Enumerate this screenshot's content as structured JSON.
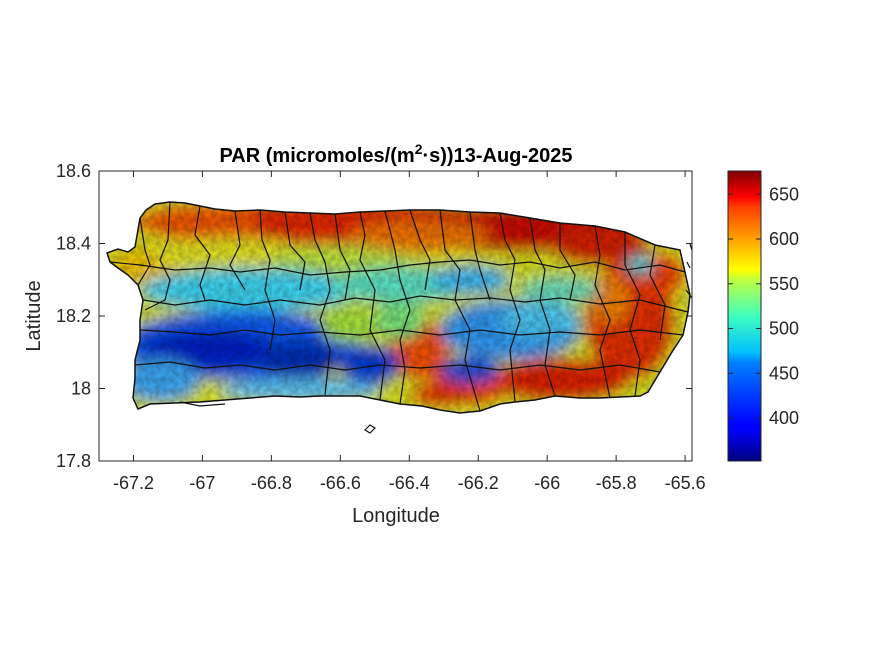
{
  "chart_data": {
    "type": "heatmap",
    "title_main": "PAR (micromoles/(m",
    "title_sup": "2",
    "title_rest": "·s))13-Aug-2025",
    "xlabel": "Longitude",
    "ylabel": "Latitude",
    "xlim": [
      -67.3,
      -65.58
    ],
    "ylim": [
      17.8,
      18.6
    ],
    "x_ticks": [
      -67.2,
      -67,
      -66.8,
      -66.6,
      -66.4,
      -66.2,
      -66,
      -65.8,
      -65.6
    ],
    "x_tick_labels": [
      "-67.2",
      "-67",
      "-66.8",
      "-66.6",
      "-66.4",
      "-66.2",
      "-66",
      "-65.8",
      "-65.6"
    ],
    "y_ticks": [
      17.8,
      18,
      18.2,
      18.4,
      18.6
    ],
    "y_tick_labels": [
      "17.8",
      "18",
      "18.2",
      "18.4",
      "18.6"
    ],
    "colorbar": {
      "colormap": "jet",
      "range": [
        352,
        676
      ],
      "ticks": [
        400,
        450,
        500,
        550,
        600,
        650
      ],
      "tick_labels": [
        "400",
        "450",
        "500",
        "550",
        "600",
        "650"
      ]
    }
  }
}
